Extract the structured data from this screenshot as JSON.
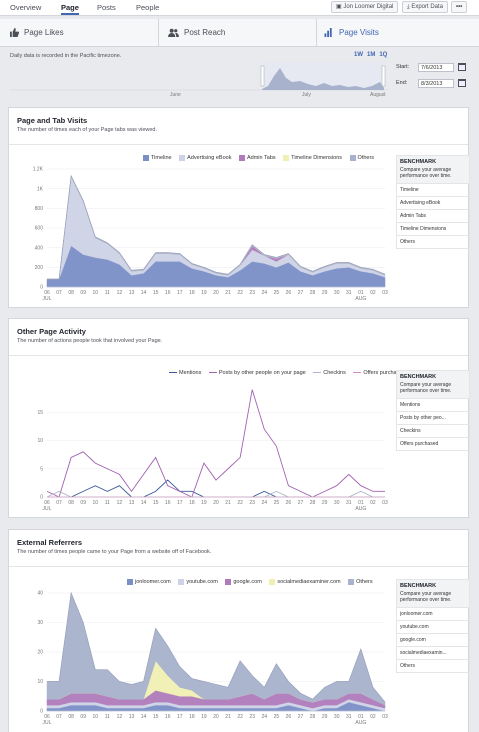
{
  "top_tabs": [
    "Overview",
    "Page",
    "Posts",
    "People"
  ],
  "account": "Jon Loomer Digital",
  "export_label": "Export Data",
  "more_label": "•••",
  "subnav": [
    "Page Likes",
    "Post Reach",
    "Page Visits"
  ],
  "timezone_note": "Daily data is recorded in the Pacific timezone.",
  "ranges": [
    "1W",
    "1M",
    "1Q"
  ],
  "timeline_months": [
    "June",
    "July",
    "August"
  ],
  "start_label": "Start:",
  "start_date": "7/6/2013",
  "end_label": "End:",
  "end_date": "8/3/2013",
  "colors": {
    "blue": "#7b8fc7",
    "light": "#cdd2e6",
    "purple": "#b07bbc",
    "yellow": "#f0f0b4",
    "slate": "#a8b2cc"
  },
  "x_ticks": [
    "06",
    "07",
    "08",
    "09",
    "10",
    "11",
    "12",
    "13",
    "14",
    "15",
    "16",
    "17",
    "18",
    "19",
    "20",
    "21",
    "22",
    "23",
    "24",
    "25",
    "26",
    "27",
    "28",
    "29",
    "30",
    "31",
    "01",
    "02",
    "03"
  ],
  "x_month_labels": {
    "start": "JUL",
    "end": "AUG"
  },
  "benchmark": {
    "title": "BENCHMARK",
    "desc": "Compare your average performance over time."
  },
  "sections": {
    "visits": {
      "title": "Page and Tab Visits",
      "subtitle": "The number of times each of your Page tabs was viewed.",
      "legend": [
        "Timeline",
        "Advertising eBook",
        "Admin Tabs",
        "Timeline Dimensions",
        "Others"
      ],
      "bench_items": [
        "Timeline",
        "Advertising eBook",
        "Admin Tabs",
        "Timeline Dimensions",
        "Others"
      ]
    },
    "activity": {
      "title": "Other Page Activity",
      "subtitle": "The number of actions people took that involved your Page.",
      "legend": [
        "Mentions",
        "Posts by other people on your page",
        "Checkins",
        "Offers purchased"
      ],
      "bench_items": [
        "Mentions",
        "Posts by other peo...",
        "Checkins",
        "Offers purchased"
      ]
    },
    "referrers": {
      "title": "External Referrers",
      "subtitle": "The number of times people came to your Page from a website off of Facebook.",
      "legend": [
        "jonloomer.com",
        "youtube.com",
        "google.com",
        "socialmediaexaminer.com",
        "Others"
      ],
      "bench_items": [
        "jonloomer.com",
        "youtube.com",
        "google.com",
        "socialmediaexamin...",
        "Others"
      ]
    }
  },
  "chart_data": [
    {
      "type": "area",
      "title": "Page and Tab Visits",
      "x": [
        "07-06",
        "07-07",
        "07-08",
        "07-09",
        "07-10",
        "07-11",
        "07-12",
        "07-13",
        "07-14",
        "07-15",
        "07-16",
        "07-17",
        "07-18",
        "07-19",
        "07-20",
        "07-21",
        "07-22",
        "07-23",
        "07-24",
        "07-25",
        "07-26",
        "07-27",
        "07-28",
        "07-29",
        "07-30",
        "07-31",
        "08-01",
        "08-02",
        "08-03"
      ],
      "ylim": [
        0,
        1200
      ],
      "y_ticks": [
        "0",
        "200",
        "400",
        "600",
        "800",
        "1K",
        "1.2K"
      ],
      "series": [
        {
          "name": "Timeline",
          "values": [
            80,
            80,
            420,
            330,
            300,
            280,
            230,
            120,
            140,
            260,
            260,
            260,
            190,
            160,
            120,
            100,
            170,
            260,
            240,
            200,
            250,
            160,
            120,
            160,
            190,
            200,
            160,
            140,
            100
          ]
        },
        {
          "name": "Advertising eBook",
          "values": [
            0,
            0,
            700,
            540,
            200,
            160,
            110,
            40,
            30,
            80,
            80,
            70,
            40,
            30,
            20,
            20,
            50,
            120,
            80,
            60,
            80,
            40,
            30,
            40,
            50,
            40,
            30,
            30,
            20
          ]
        },
        {
          "name": "Admin Tabs",
          "values": [
            0,
            0,
            0,
            0,
            0,
            0,
            0,
            0,
            0,
            0,
            0,
            0,
            0,
            0,
            0,
            0,
            0,
            40,
            0,
            30,
            0,
            0,
            0,
            0,
            0,
            0,
            0,
            0,
            0
          ]
        },
        {
          "name": "Timeline Dimensions",
          "values": [
            0,
            0,
            0,
            0,
            0,
            0,
            0,
            0,
            0,
            0,
            0,
            0,
            0,
            0,
            0,
            0,
            0,
            0,
            0,
            0,
            0,
            0,
            0,
            0,
            0,
            0,
            0,
            0,
            0
          ]
        },
        {
          "name": "Others",
          "values": [
            0,
            0,
            10,
            10,
            10,
            10,
            10,
            10,
            10,
            10,
            10,
            10,
            10,
            10,
            10,
            10,
            10,
            10,
            10,
            10,
            10,
            10,
            10,
            10,
            10,
            10,
            10,
            10,
            10
          ]
        }
      ]
    },
    {
      "type": "line",
      "title": "Other Page Activity",
      "x": [
        "07-06",
        "07-07",
        "07-08",
        "07-09",
        "07-10",
        "07-11",
        "07-12",
        "07-13",
        "07-14",
        "07-15",
        "07-16",
        "07-17",
        "07-18",
        "07-19",
        "07-20",
        "07-21",
        "07-22",
        "07-23",
        "07-24",
        "07-25",
        "07-26",
        "07-27",
        "07-28",
        "07-29",
        "07-30",
        "07-31",
        "08-01",
        "08-02",
        "08-03"
      ],
      "ylim": [
        0,
        20
      ],
      "y_ticks": [
        "0",
        "5",
        "10",
        "15"
      ],
      "series": [
        {
          "name": "Mentions",
          "values": [
            0,
            0,
            0,
            1,
            2,
            1,
            2,
            0,
            0,
            1,
            3,
            1,
            1,
            0,
            0,
            0,
            0,
            0,
            1,
            0,
            0,
            0,
            0,
            0,
            0,
            0,
            0,
            0,
            0
          ]
        },
        {
          "name": "Posts by other people on your page",
          "values": [
            1,
            0,
            7,
            8,
            6,
            5,
            4,
            1,
            4,
            7,
            2,
            1,
            0,
            6,
            3,
            5,
            7,
            19,
            12,
            9,
            2,
            1,
            0,
            1,
            2,
            4,
            2,
            1,
            1
          ]
        },
        {
          "name": "Checkins",
          "values": [
            0,
            1,
            0,
            0,
            0,
            0,
            0,
            0,
            0,
            0,
            0,
            0,
            0,
            0,
            0,
            0,
            0,
            0,
            0,
            1,
            0,
            0,
            0,
            0,
            0,
            0,
            1,
            0,
            0
          ]
        },
        {
          "name": "Offers purchased",
          "values": [
            0,
            0,
            0,
            0,
            0,
            0,
            0,
            0,
            0,
            0,
            0,
            0,
            0,
            0,
            0,
            0,
            0,
            0,
            0,
            0,
            0,
            0,
            0,
            0,
            0,
            0,
            0,
            0,
            0
          ]
        }
      ]
    },
    {
      "type": "area",
      "title": "External Referrers",
      "x": [
        "07-06",
        "07-07",
        "07-08",
        "07-09",
        "07-10",
        "07-11",
        "07-12",
        "07-13",
        "07-14",
        "07-15",
        "07-16",
        "07-17",
        "07-18",
        "07-19",
        "07-20",
        "07-21",
        "07-22",
        "07-23",
        "07-24",
        "07-25",
        "07-26",
        "07-27",
        "07-28",
        "07-29",
        "07-30",
        "07-31",
        "08-01",
        "08-02",
        "08-03"
      ],
      "ylim": [
        0,
        40
      ],
      "y_ticks": [
        "0",
        "10",
        "20",
        "30",
        "40"
      ],
      "series": [
        {
          "name": "jonloomer.com",
          "values": [
            1,
            1,
            2,
            2,
            2,
            1,
            1,
            1,
            1,
            2,
            2,
            1,
            1,
            1,
            1,
            1,
            1,
            1,
            1,
            1,
            2,
            1,
            0,
            1,
            1,
            3,
            2,
            1,
            0
          ]
        },
        {
          "name": "youtube.com",
          "values": [
            1,
            1,
            1,
            1,
            1,
            1,
            1,
            1,
            1,
            1,
            1,
            1,
            1,
            1,
            1,
            1,
            1,
            1,
            1,
            1,
            1,
            1,
            1,
            1,
            1,
            1,
            1,
            1,
            1
          ]
        },
        {
          "name": "google.com",
          "values": [
            2,
            2,
            3,
            3,
            3,
            3,
            2,
            2,
            2,
            4,
            3,
            3,
            3,
            2,
            2,
            2,
            3,
            4,
            2,
            4,
            3,
            2,
            2,
            2,
            2,
            2,
            3,
            2,
            1
          ]
        },
        {
          "name": "socialmediaexaminer.com",
          "values": [
            0,
            0,
            0,
            0,
            0,
            0,
            0,
            0,
            0,
            10,
            6,
            3,
            2,
            0,
            0,
            0,
            0,
            0,
            0,
            0,
            0,
            0,
            0,
            0,
            0,
            0,
            0,
            0,
            0
          ]
        },
        {
          "name": "Others",
          "values": [
            6,
            6,
            34,
            24,
            8,
            9,
            6,
            5,
            6,
            11,
            10,
            7,
            4,
            6,
            5,
            4,
            12,
            6,
            4,
            10,
            4,
            2,
            1,
            4,
            6,
            4,
            15,
            4,
            1
          ]
        }
      ]
    }
  ]
}
